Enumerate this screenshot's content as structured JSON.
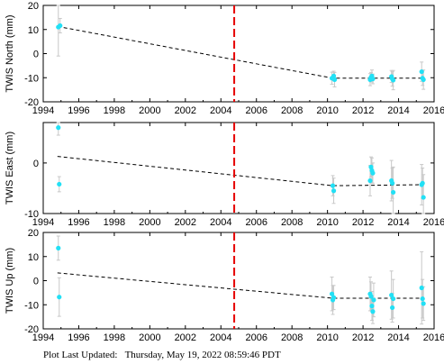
{
  "footer": {
    "label": "Plot Last Updated:",
    "value": "Thursday, May 19, 2022 08:59:46 PDT"
  },
  "colors": {
    "points": "#22e0f5",
    "errorbar": "#c8c8c8",
    "fit": "#000000",
    "event_line": "#e60000",
    "frame": "#000000"
  },
  "chart_data": [
    {
      "type": "scatter",
      "ylabel": "TWIS North (mm)",
      "xlim": [
        1994,
        2016
      ],
      "ylim": [
        -20,
        20
      ],
      "xticks": [
        1994,
        1996,
        1998,
        2000,
        2002,
        2004,
        2006,
        2008,
        2010,
        2012,
        2014,
        2016
      ],
      "yticks": [
        -20,
        -10,
        0,
        10,
        20
      ],
      "event_x": 2004.75,
      "fit_line": [
        [
          1994.8,
          11.3
        ],
        [
          2010.3,
          -10.2
        ],
        [
          2015.4,
          -10.2
        ]
      ],
      "points": [
        {
          "x": 1994.85,
          "y": 11.0,
          "err": 12.0
        },
        {
          "x": 1994.95,
          "y": 11.6,
          "err": 3.0
        },
        {
          "x": 2010.25,
          "y": -10.2,
          "err": 2.5
        },
        {
          "x": 2010.35,
          "y": -9.3,
          "err": 2.0
        },
        {
          "x": 2010.4,
          "y": -10.8,
          "err": 3.0
        },
        {
          "x": 2012.4,
          "y": -10.8,
          "err": 2.5
        },
        {
          "x": 2012.45,
          "y": -9.8,
          "err": 2.0
        },
        {
          "x": 2012.5,
          "y": -9.3,
          "err": 2.5
        },
        {
          "x": 2012.55,
          "y": -10.5,
          "err": 2.0
        },
        {
          "x": 2013.6,
          "y": -9.5,
          "err": 2.5
        },
        {
          "x": 2013.65,
          "y": -10.5,
          "err": 3.0
        },
        {
          "x": 2013.7,
          "y": -11.0,
          "err": 4.0
        },
        {
          "x": 2015.3,
          "y": -7.5,
          "err": 4.0
        },
        {
          "x": 2015.35,
          "y": -10.2,
          "err": 3.0
        },
        {
          "x": 2015.4,
          "y": -10.8,
          "err": 4.0
        }
      ]
    },
    {
      "type": "scatter",
      "ylabel": "TWIS East (mm)",
      "xlim": [
        1994,
        2016
      ],
      "ylim": [
        -10,
        8
      ],
      "xticks": [
        1994,
        1996,
        1998,
        2000,
        2002,
        2004,
        2006,
        2008,
        2010,
        2012,
        2014,
        2016
      ],
      "yticks": [
        -10,
        0
      ],
      "event_x": 2004.75,
      "fit_line": [
        [
          1994.8,
          1.3
        ],
        [
          2010.3,
          -4.5
        ],
        [
          2015.4,
          -4.3
        ]
      ],
      "points": [
        {
          "x": 1994.85,
          "y": 7.0,
          "err": 1.5
        },
        {
          "x": 1994.9,
          "y": -4.2,
          "err": 1.5
        },
        {
          "x": 2010.3,
          "y": -4.5,
          "err": 2.0
        },
        {
          "x": 2010.35,
          "y": -5.5,
          "err": 2.5
        },
        {
          "x": 2012.4,
          "y": -3.5,
          "err": 3.0
        },
        {
          "x": 2012.45,
          "y": -0.8,
          "err": 2.0
        },
        {
          "x": 2012.5,
          "y": -1.5,
          "err": 2.5
        },
        {
          "x": 2012.55,
          "y": -2.0,
          "err": 2.0
        },
        {
          "x": 2013.6,
          "y": -3.5,
          "err": 4.0
        },
        {
          "x": 2013.65,
          "y": -4.0,
          "err": 3.0
        },
        {
          "x": 2013.7,
          "y": -5.8,
          "err": 5.0
        },
        {
          "x": 2015.3,
          "y": -4.3,
          "err": 4.0
        },
        {
          "x": 2015.35,
          "y": -4.0,
          "err": 3.0
        },
        {
          "x": 2015.4,
          "y": -6.8,
          "err": 4.5
        }
      ]
    },
    {
      "type": "scatter",
      "ylabel": "TWIS Up (mm)",
      "xlim": [
        1994,
        2016
      ],
      "ylim": [
        -20,
        20
      ],
      "xticks": [
        1994,
        1996,
        1998,
        2000,
        2002,
        2004,
        2006,
        2008,
        2010,
        2012,
        2014,
        2016
      ],
      "yticks": [
        -20,
        -10,
        0,
        10,
        20
      ],
      "event_x": 2004.75,
      "fit_line": [
        [
          1994.8,
          3.2
        ],
        [
          2010.3,
          -7.3
        ],
        [
          2015.4,
          -7.3
        ]
      ],
      "points": [
        {
          "x": 1994.85,
          "y": 13.5,
          "err": 5.0
        },
        {
          "x": 1994.9,
          "y": -6.8,
          "err": 8.0
        },
        {
          "x": 2010.25,
          "y": -5.5,
          "err": 7.0
        },
        {
          "x": 2010.3,
          "y": -8.0,
          "err": 6.0
        },
        {
          "x": 2010.35,
          "y": -7.0,
          "err": 5.0
        },
        {
          "x": 2012.4,
          "y": -5.5,
          "err": 7.0
        },
        {
          "x": 2012.45,
          "y": -6.5,
          "err": 6.0
        },
        {
          "x": 2012.5,
          "y": -10.5,
          "err": 6.0
        },
        {
          "x": 2012.55,
          "y": -12.8,
          "err": 5.0
        },
        {
          "x": 2012.6,
          "y": -8.0,
          "err": 7.0
        },
        {
          "x": 2013.6,
          "y": -6.0,
          "err": 10.0
        },
        {
          "x": 2013.65,
          "y": -11.2,
          "err": 6.0
        },
        {
          "x": 2013.7,
          "y": -7.5,
          "err": 8.0
        },
        {
          "x": 2015.3,
          "y": -3.0,
          "err": 15.0
        },
        {
          "x": 2015.35,
          "y": -7.5,
          "err": 8.0
        },
        {
          "x": 2015.4,
          "y": -9.5,
          "err": 7.0
        }
      ]
    }
  ]
}
